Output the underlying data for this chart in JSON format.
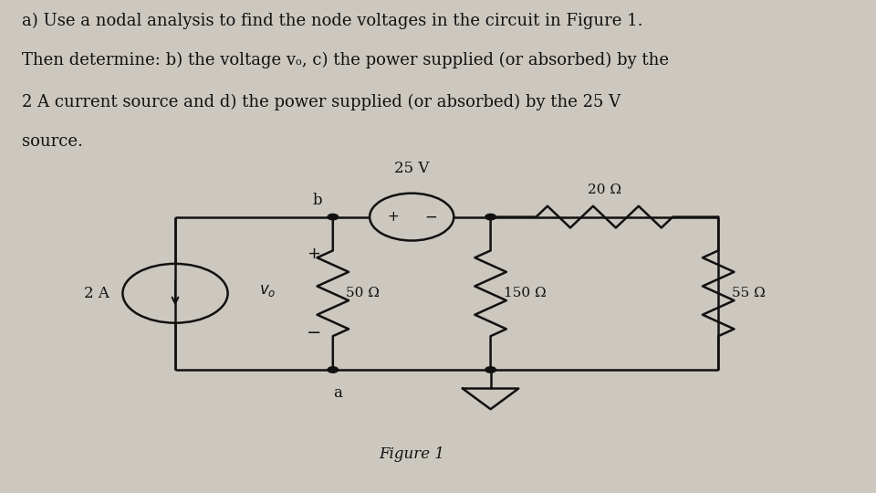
{
  "bg_color": "#ccc8c0",
  "text_color": "#111111",
  "title_lines": [
    "a) Use a nodal analysis to find the node voltages in the circuit in Figure 1.",
    "Then determine: b) the voltage vₒ, c) the power supplied (or absorbed) by the",
    "2 A current source and d) the power supplied (or absorbed) by the 25 V",
    "source."
  ],
  "figure_label": "Figure 1",
  "xl": 0.2,
  "xb": 0.38,
  "xm": 0.56,
  "xr": 0.82,
  "yt": 0.56,
  "yb": 0.25,
  "cs_r": 0.06,
  "vs_r": 0.048,
  "lw": 1.8
}
